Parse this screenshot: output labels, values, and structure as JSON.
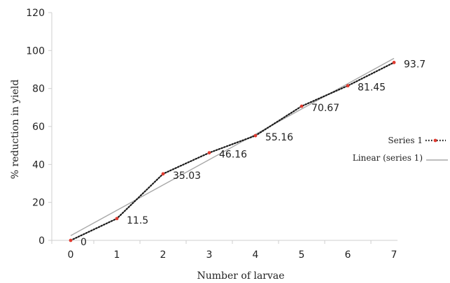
{
  "chart_data": {
    "type": "line",
    "xlabel": "Number of larvae",
    "ylabel": "% reduction in yield",
    "xlim": [
      0,
      7
    ],
    "ylim": [
      0,
      120
    ],
    "x_ticks": [
      "0",
      "1",
      "2",
      "3",
      "4",
      "5",
      "6",
      "7"
    ],
    "y_ticks": [
      "0",
      "20",
      "40",
      "60",
      "80",
      "100",
      "120"
    ],
    "grid": false,
    "legend_position": "right",
    "series": [
      {
        "name": "Series 1",
        "style": "dotted",
        "line_color": "#1a1a1a",
        "marker_color": "#e03a2f",
        "x": [
          0,
          1,
          2,
          3,
          4,
          5,
          6,
          7
        ],
        "values": [
          0,
          11.5,
          35.03,
          46.16,
          55.16,
          70.67,
          81.45,
          93.7
        ],
        "data_labels": [
          "0",
          "11.5",
          "35.03",
          "46.16",
          "55.16",
          "70.67",
          "81.45",
          "93.7"
        ]
      },
      {
        "name": "Linear (series 1)",
        "style": "solid",
        "line_color": "#a8a8a8",
        "x": [
          0,
          7
        ],
        "values": [
          2.5,
          95.9
        ]
      }
    ]
  }
}
